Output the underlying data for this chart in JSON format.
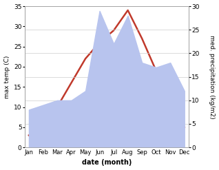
{
  "months": [
    "Jan",
    "Feb",
    "Mar",
    "Apr",
    "May",
    "Jun",
    "Jul",
    "Aug",
    "Sep",
    "Oct",
    "Nov",
    "Dec"
  ],
  "temp": [
    3,
    5,
    10,
    16,
    22,
    26,
    29,
    34,
    27,
    19,
    10,
    5
  ],
  "precip": [
    8,
    9,
    10,
    10,
    12,
    29,
    22,
    28,
    18,
    17,
    18,
    12
  ],
  "temp_color": "#c0392b",
  "precip_color": "#b8c4ee",
  "temp_ylim": [
    0,
    35
  ],
  "precip_ylim": [
    0,
    30
  ],
  "temp_yticks": [
    0,
    5,
    10,
    15,
    20,
    25,
    30,
    35
  ],
  "precip_yticks": [
    0,
    5,
    10,
    15,
    20,
    25,
    30
  ],
  "ylabel_left": "max temp (C)",
  "ylabel_right": "med. precipitation (kg/m2)",
  "xlabel": "date (month)",
  "bg_color": "#ffffff",
  "line_width": 1.8
}
